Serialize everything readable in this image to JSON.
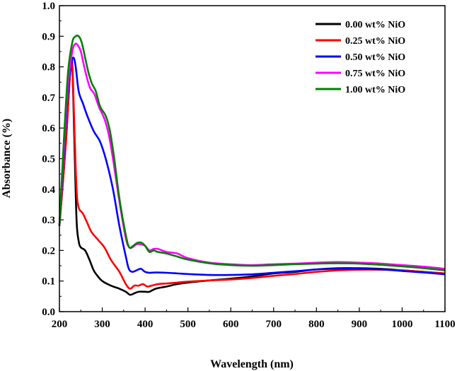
{
  "chart_data": {
    "type": "line",
    "title": "",
    "xlabel": "Wavelength (nm)",
    "ylabel": "Absorbance (%)",
    "xlim": [
      200,
      1100
    ],
    "ylim": [
      0.0,
      1.0
    ],
    "xticks": [
      "200",
      "300",
      "400",
      "500",
      "600",
      "700",
      "800",
      "900",
      "1000",
      "1100"
    ],
    "yticks": [
      "0.0",
      "0.1",
      "0.2",
      "0.3",
      "0.4",
      "0.5",
      "0.6",
      "0.7",
      "0.8",
      "0.9",
      "1.0"
    ],
    "legend_position": "top-right",
    "series": [
      {
        "name": "0.00 wt% NiO",
        "color": "#000000",
        "points": [
          [
            200,
            0.28
          ],
          [
            215,
            0.55
          ],
          [
            225,
            0.78
          ],
          [
            230,
            0.8
          ],
          [
            235,
            0.55
          ],
          [
            240,
            0.3
          ],
          [
            245,
            0.23
          ],
          [
            250,
            0.21
          ],
          [
            260,
            0.2
          ],
          [
            270,
            0.17
          ],
          [
            280,
            0.135
          ],
          [
            290,
            0.115
          ],
          [
            300,
            0.1
          ],
          [
            320,
            0.085
          ],
          [
            340,
            0.075
          ],
          [
            355,
            0.065
          ],
          [
            365,
            0.055
          ],
          [
            375,
            0.06
          ],
          [
            385,
            0.065
          ],
          [
            400,
            0.065
          ],
          [
            410,
            0.065
          ],
          [
            425,
            0.075
          ],
          [
            450,
            0.082
          ],
          [
            475,
            0.09
          ],
          [
            500,
            0.095
          ],
          [
            550,
            0.102
          ],
          [
            600,
            0.108
          ],
          [
            650,
            0.115
          ],
          [
            700,
            0.125
          ],
          [
            750,
            0.13
          ],
          [
            800,
            0.138
          ],
          [
            850,
            0.142
          ],
          [
            900,
            0.142
          ],
          [
            950,
            0.14
          ],
          [
            1000,
            0.135
          ],
          [
            1050,
            0.13
          ],
          [
            1100,
            0.125
          ]
        ]
      },
      {
        "name": "0.25 wt% NiO",
        "color": "#ff0000",
        "points": [
          [
            200,
            0.28
          ],
          [
            215,
            0.55
          ],
          [
            225,
            0.78
          ],
          [
            230,
            0.81
          ],
          [
            235,
            0.6
          ],
          [
            240,
            0.4
          ],
          [
            245,
            0.34
          ],
          [
            255,
            0.32
          ],
          [
            265,
            0.29
          ],
          [
            275,
            0.26
          ],
          [
            290,
            0.235
          ],
          [
            305,
            0.21
          ],
          [
            320,
            0.17
          ],
          [
            340,
            0.13
          ],
          [
            355,
            0.09
          ],
          [
            365,
            0.075
          ],
          [
            375,
            0.085
          ],
          [
            385,
            0.085
          ],
          [
            395,
            0.09
          ],
          [
            405,
            0.082
          ],
          [
            415,
            0.085
          ],
          [
            430,
            0.09
          ],
          [
            450,
            0.092
          ],
          [
            475,
            0.095
          ],
          [
            500,
            0.098
          ],
          [
            550,
            0.102
          ],
          [
            600,
            0.105
          ],
          [
            650,
            0.11
          ],
          [
            700,
            0.117
          ],
          [
            750,
            0.123
          ],
          [
            800,
            0.13
          ],
          [
            850,
            0.135
          ],
          [
            900,
            0.137
          ],
          [
            950,
            0.137
          ],
          [
            1000,
            0.135
          ],
          [
            1050,
            0.13
          ],
          [
            1100,
            0.125
          ]
        ]
      },
      {
        "name": "0.50 wt% NiO",
        "color": "#0000ff",
        "points": [
          [
            200,
            0.28
          ],
          [
            210,
            0.5
          ],
          [
            220,
            0.72
          ],
          [
            228,
            0.81
          ],
          [
            233,
            0.83
          ],
          [
            238,
            0.8
          ],
          [
            245,
            0.72
          ],
          [
            255,
            0.68
          ],
          [
            265,
            0.64
          ],
          [
            280,
            0.59
          ],
          [
            295,
            0.555
          ],
          [
            310,
            0.49
          ],
          [
            325,
            0.4
          ],
          [
            340,
            0.28
          ],
          [
            355,
            0.18
          ],
          [
            362,
            0.14
          ],
          [
            370,
            0.13
          ],
          [
            380,
            0.135
          ],
          [
            390,
            0.14
          ],
          [
            400,
            0.13
          ],
          [
            410,
            0.127
          ],
          [
            425,
            0.128
          ],
          [
            450,
            0.127
          ],
          [
            475,
            0.125
          ],
          [
            500,
            0.123
          ],
          [
            550,
            0.12
          ],
          [
            600,
            0.12
          ],
          [
            650,
            0.122
          ],
          [
            700,
            0.127
          ],
          [
            750,
            0.132
          ],
          [
            800,
            0.138
          ],
          [
            850,
            0.14
          ],
          [
            900,
            0.14
          ],
          [
            950,
            0.138
          ],
          [
            1000,
            0.133
          ],
          [
            1050,
            0.128
          ],
          [
            1100,
            0.122
          ]
        ]
      },
      {
        "name": "0.75 wt% NiO",
        "color": "#ff00ff",
        "points": [
          [
            200,
            0.28
          ],
          [
            210,
            0.52
          ],
          [
            220,
            0.74
          ],
          [
            230,
            0.85
          ],
          [
            237,
            0.875
          ],
          [
            243,
            0.87
          ],
          [
            250,
            0.85
          ],
          [
            258,
            0.8
          ],
          [
            265,
            0.76
          ],
          [
            272,
            0.73
          ],
          [
            282,
            0.71
          ],
          [
            292,
            0.67
          ],
          [
            305,
            0.63
          ],
          [
            315,
            0.58
          ],
          [
            325,
            0.5
          ],
          [
            340,
            0.36
          ],
          [
            355,
            0.24
          ],
          [
            363,
            0.21
          ],
          [
            370,
            0.21
          ],
          [
            380,
            0.22
          ],
          [
            390,
            0.22
          ],
          [
            400,
            0.215
          ],
          [
            410,
            0.2
          ],
          [
            420,
            0.205
          ],
          [
            430,
            0.205
          ],
          [
            450,
            0.195
          ],
          [
            475,
            0.19
          ],
          [
            500,
            0.175
          ],
          [
            550,
            0.16
          ],
          [
            600,
            0.155
          ],
          [
            650,
            0.152
          ],
          [
            700,
            0.155
          ],
          [
            750,
            0.157
          ],
          [
            800,
            0.16
          ],
          [
            850,
            0.162
          ],
          [
            900,
            0.16
          ],
          [
            950,
            0.157
          ],
          [
            1000,
            0.152
          ],
          [
            1050,
            0.147
          ],
          [
            1100,
            0.14
          ]
        ]
      },
      {
        "name": "1.00 wt% NiO",
        "color": "#008000",
        "points": [
          [
            200,
            0.28
          ],
          [
            210,
            0.55
          ],
          [
            220,
            0.78
          ],
          [
            230,
            0.88
          ],
          [
            238,
            0.9
          ],
          [
            245,
            0.9
          ],
          [
            252,
            0.88
          ],
          [
            260,
            0.83
          ],
          [
            268,
            0.78
          ],
          [
            276,
            0.745
          ],
          [
            285,
            0.72
          ],
          [
            295,
            0.67
          ],
          [
            308,
            0.64
          ],
          [
            318,
            0.59
          ],
          [
            328,
            0.5
          ],
          [
            340,
            0.37
          ],
          [
            355,
            0.25
          ],
          [
            363,
            0.21
          ],
          [
            372,
            0.215
          ],
          [
            382,
            0.225
          ],
          [
            392,
            0.225
          ],
          [
            400,
            0.215
          ],
          [
            410,
            0.195
          ],
          [
            420,
            0.2
          ],
          [
            430,
            0.195
          ],
          [
            450,
            0.19
          ],
          [
            475,
            0.18
          ],
          [
            500,
            0.17
          ],
          [
            550,
            0.158
          ],
          [
            600,
            0.152
          ],
          [
            650,
            0.15
          ],
          [
            700,
            0.152
          ],
          [
            750,
            0.155
          ],
          [
            800,
            0.157
          ],
          [
            850,
            0.158
          ],
          [
            900,
            0.157
          ],
          [
            950,
            0.153
          ],
          [
            1000,
            0.148
          ],
          [
            1050,
            0.142
          ],
          [
            1100,
            0.135
          ]
        ]
      }
    ]
  }
}
